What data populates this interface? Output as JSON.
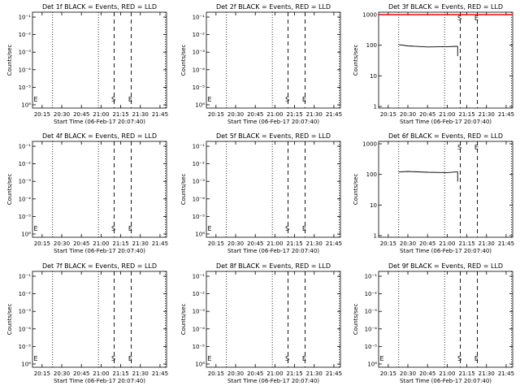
{
  "xticks": [
    "20:15",
    "20:30",
    "20:45",
    "21:00",
    "21:15",
    "21:30",
    "21:45"
  ],
  "xlabel": "Start Time (06-Feb-17 20:07:40)",
  "ylabel": "Counts/sec",
  "marker_labels": {
    "start": "S",
    "end": "E"
  },
  "colors": {
    "events": "#000000",
    "lld": "#ff0000",
    "frame": "#000000"
  },
  "chart_data": [
    {
      "type": "line",
      "title": "Det 1f BLACK = Events, RED = LLD",
      "scale": "log",
      "ylim": [
        1e-06,
        0.0001
      ],
      "yticks": [
        "10⁶",
        "10⁻⁵",
        "10⁻⁴",
        "10⁻³",
        "10⁻²",
        "10⁻¹"
      ],
      "markers": [
        {
          "label": "S",
          "x": "21:10"
        },
        {
          "label": "E",
          "x": "21:23"
        }
      ],
      "series": []
    },
    {
      "type": "line",
      "title": "Det 2f BLACK = Events, RED = LLD",
      "scale": "log",
      "yticks": [
        "10⁶",
        "10⁻⁵",
        "10⁻⁴",
        "10⁻³",
        "10⁻²",
        "10⁻¹"
      ],
      "markers": [
        {
          "label": "S",
          "x": "21:10"
        },
        {
          "label": "E",
          "x": "21:23"
        }
      ],
      "series": []
    },
    {
      "type": "line",
      "title": "Det 3f BLACK = Events, RED = LLD",
      "scale": "log",
      "ylim": [
        1,
        1000
      ],
      "yticks": [
        "1000",
        "100",
        "10",
        "1"
      ],
      "markers": [
        {
          "label": "S",
          "x": "21:10"
        },
        {
          "label": "E",
          "x": "21:23"
        }
      ],
      "series": [
        {
          "color": "#000000",
          "x": [
            "20:23",
            "20:30",
            "20:45",
            "21:00",
            "21:08"
          ],
          "values": [
            105,
            95,
            88,
            90,
            92
          ]
        },
        {
          "color": "#ff0000",
          "x": [
            "20:07",
            "21:50"
          ],
          "values": [
            1000,
            1000
          ]
        }
      ]
    },
    {
      "type": "line",
      "title": "Det 4f BLACK = Events, RED = LLD",
      "scale": "log",
      "yticks": [
        "10⁶",
        "10⁻⁵",
        "10⁻⁴",
        "10⁻³",
        "10⁻²",
        "10⁻¹"
      ],
      "markers": [
        {
          "label": "S",
          "x": "21:10"
        },
        {
          "label": "E",
          "x": "21:23"
        }
      ],
      "series": []
    },
    {
      "type": "line",
      "title": "Det 5f BLACK = Events, RED = LLD",
      "scale": "log",
      "yticks": [
        "10⁶",
        "10⁻⁵",
        "10⁻⁴",
        "10⁻³",
        "10⁻²",
        "10⁻¹"
      ],
      "markers": [
        {
          "label": "S",
          "x": "21:10"
        },
        {
          "label": "E",
          "x": "21:23"
        }
      ],
      "series": []
    },
    {
      "type": "line",
      "title": "Det 6f BLACK = Events, RED = LLD",
      "scale": "log",
      "ylim": [
        1,
        1000
      ],
      "yticks": [
        "1000",
        "100",
        "10",
        "1"
      ],
      "markers": [
        {
          "label": "S",
          "x": "21:10"
        },
        {
          "label": "E",
          "x": "21:23"
        }
      ],
      "series": [
        {
          "color": "#000000",
          "x": [
            "20:23",
            "20:30",
            "20:45",
            "21:00",
            "21:08"
          ],
          "values": [
            120,
            125,
            118,
            115,
            122
          ]
        }
      ]
    },
    {
      "type": "line",
      "title": "Det 7f BLACK = Events, RED = LLD",
      "scale": "log",
      "yticks": [
        "10⁶",
        "10⁻⁵",
        "10⁻⁴",
        "10⁻³",
        "10⁻²",
        "10⁻¹"
      ],
      "markers": [
        {
          "label": "S",
          "x": "21:10"
        },
        {
          "label": "E",
          "x": "21:23"
        }
      ],
      "series": []
    },
    {
      "type": "line",
      "title": "Det 8f BLACK = Events, RED = LLD",
      "scale": "log",
      "yticks": [
        "10⁶",
        "10⁻⁵",
        "10⁻⁴",
        "10⁻³",
        "10⁻²",
        "10⁻¹"
      ],
      "markers": [
        {
          "label": "S",
          "x": "21:10"
        },
        {
          "label": "E",
          "x": "21:23"
        }
      ],
      "series": []
    },
    {
      "type": "line",
      "title": "Det 9f BLACK = Events, RED = LLD",
      "scale": "log",
      "yticks": [
        "10⁶",
        "10⁻⁵",
        "10⁻⁴",
        "10⁻³",
        "10⁻²",
        "10⁻¹"
      ],
      "markers": [
        {
          "label": "S",
          "x": "21:10"
        },
        {
          "label": "E",
          "x": "21:23"
        }
      ],
      "series": []
    }
  ]
}
